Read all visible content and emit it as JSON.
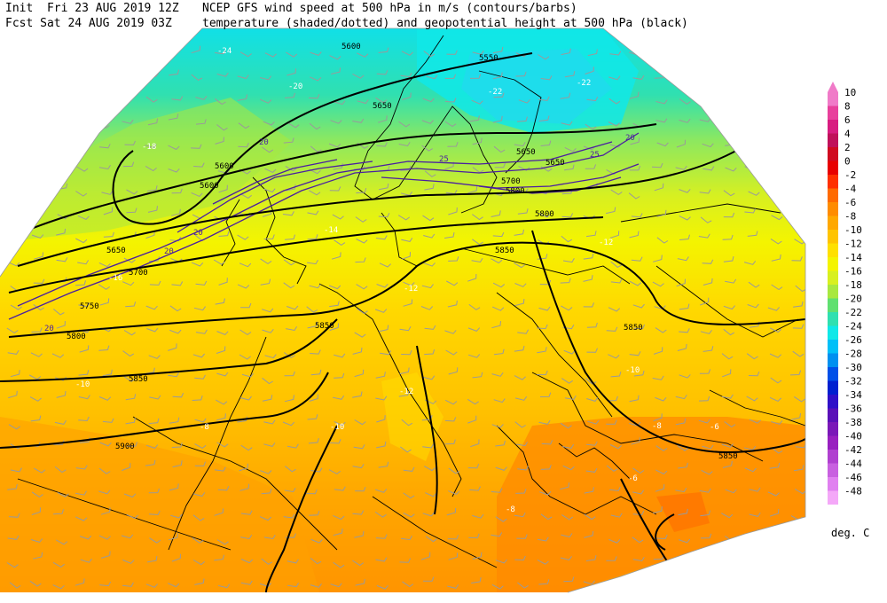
{
  "header": {
    "init_line": "Init  Fri 23 AUG 2019 12Z",
    "fcst_line": "Fcst Sat 24 AUG 2019 03Z",
    "title_line1": "NCEP GFS wind speed at 500 hPa in m/s (contours/barbs)",
    "title_line2": "temperature (shaded/dotted) and geopotential height at 500 hPa (black)"
  },
  "legend": {
    "units": "deg. C",
    "levels": [
      {
        "label": "10",
        "color": "#f07ac8"
      },
      {
        "label": "8",
        "color": "#e8409c"
      },
      {
        "label": "6",
        "color": "#d81c80"
      },
      {
        "label": "4",
        "color": "#c0105a"
      },
      {
        "label": "2",
        "color": "#d00a20"
      },
      {
        "label": "0",
        "color": "#e80000"
      },
      {
        "label": "-2",
        "color": "#ff3000"
      },
      {
        "label": "-4",
        "color": "#ff6a00"
      },
      {
        "label": "-6",
        "color": "#ff8c00"
      },
      {
        "label": "-8",
        "color": "#ffa800"
      },
      {
        "label": "-10",
        "color": "#ffc400"
      },
      {
        "label": "-12",
        "color": "#ffe000"
      },
      {
        "label": "-14",
        "color": "#f4f400"
      },
      {
        "label": "-16",
        "color": "#d8f020"
      },
      {
        "label": "-18",
        "color": "#a8e840"
      },
      {
        "label": "-20",
        "color": "#60e070"
      },
      {
        "label": "-22",
        "color": "#30e0b0"
      },
      {
        "label": "-24",
        "color": "#10e8e8"
      },
      {
        "label": "-26",
        "color": "#00c0f8"
      },
      {
        "label": "-28",
        "color": "#0090f0"
      },
      {
        "label": "-30",
        "color": "#0050e8"
      },
      {
        "label": "-32",
        "color": "#0020d0"
      },
      {
        "label": "-34",
        "color": "#3010c8"
      },
      {
        "label": "-36",
        "color": "#5a10b8"
      },
      {
        "label": "-38",
        "color": "#7a18b8"
      },
      {
        "label": "-40",
        "color": "#9820c0"
      },
      {
        "label": "-42",
        "color": "#b040d0"
      },
      {
        "label": "-44",
        "color": "#c860e0"
      },
      {
        "label": "-46",
        "color": "#e080f0"
      },
      {
        "label": "-48",
        "color": "#f4a8f8"
      }
    ]
  },
  "map": {
    "height_labels": [
      "5600",
      "5550",
      "5650",
      "5600",
      "5650",
      "5700",
      "5750",
      "5800",
      "5850",
      "5900",
      "5850",
      "5850",
      "5800",
      "5700",
      "5650",
      "5650",
      "5850",
      "5600",
      "5850",
      "5800"
    ],
    "temp_labels": [
      "-24",
      "-22",
      "-20",
      "-22",
      "-18",
      "-16",
      "-14",
      "-12",
      "-12",
      "-10",
      "-10",
      "-8",
      "-8",
      "-10",
      "-12",
      "-6",
      "-6",
      "-8"
    ],
    "wind_labels": [
      "20",
      "25",
      "20",
      "25",
      "20",
      "20",
      "20"
    ]
  },
  "colors": {
    "height_contour": "#000000",
    "wind_contour": "#4b1fa0",
    "coastline": "#000000",
    "barb": "#9a9a9a"
  }
}
